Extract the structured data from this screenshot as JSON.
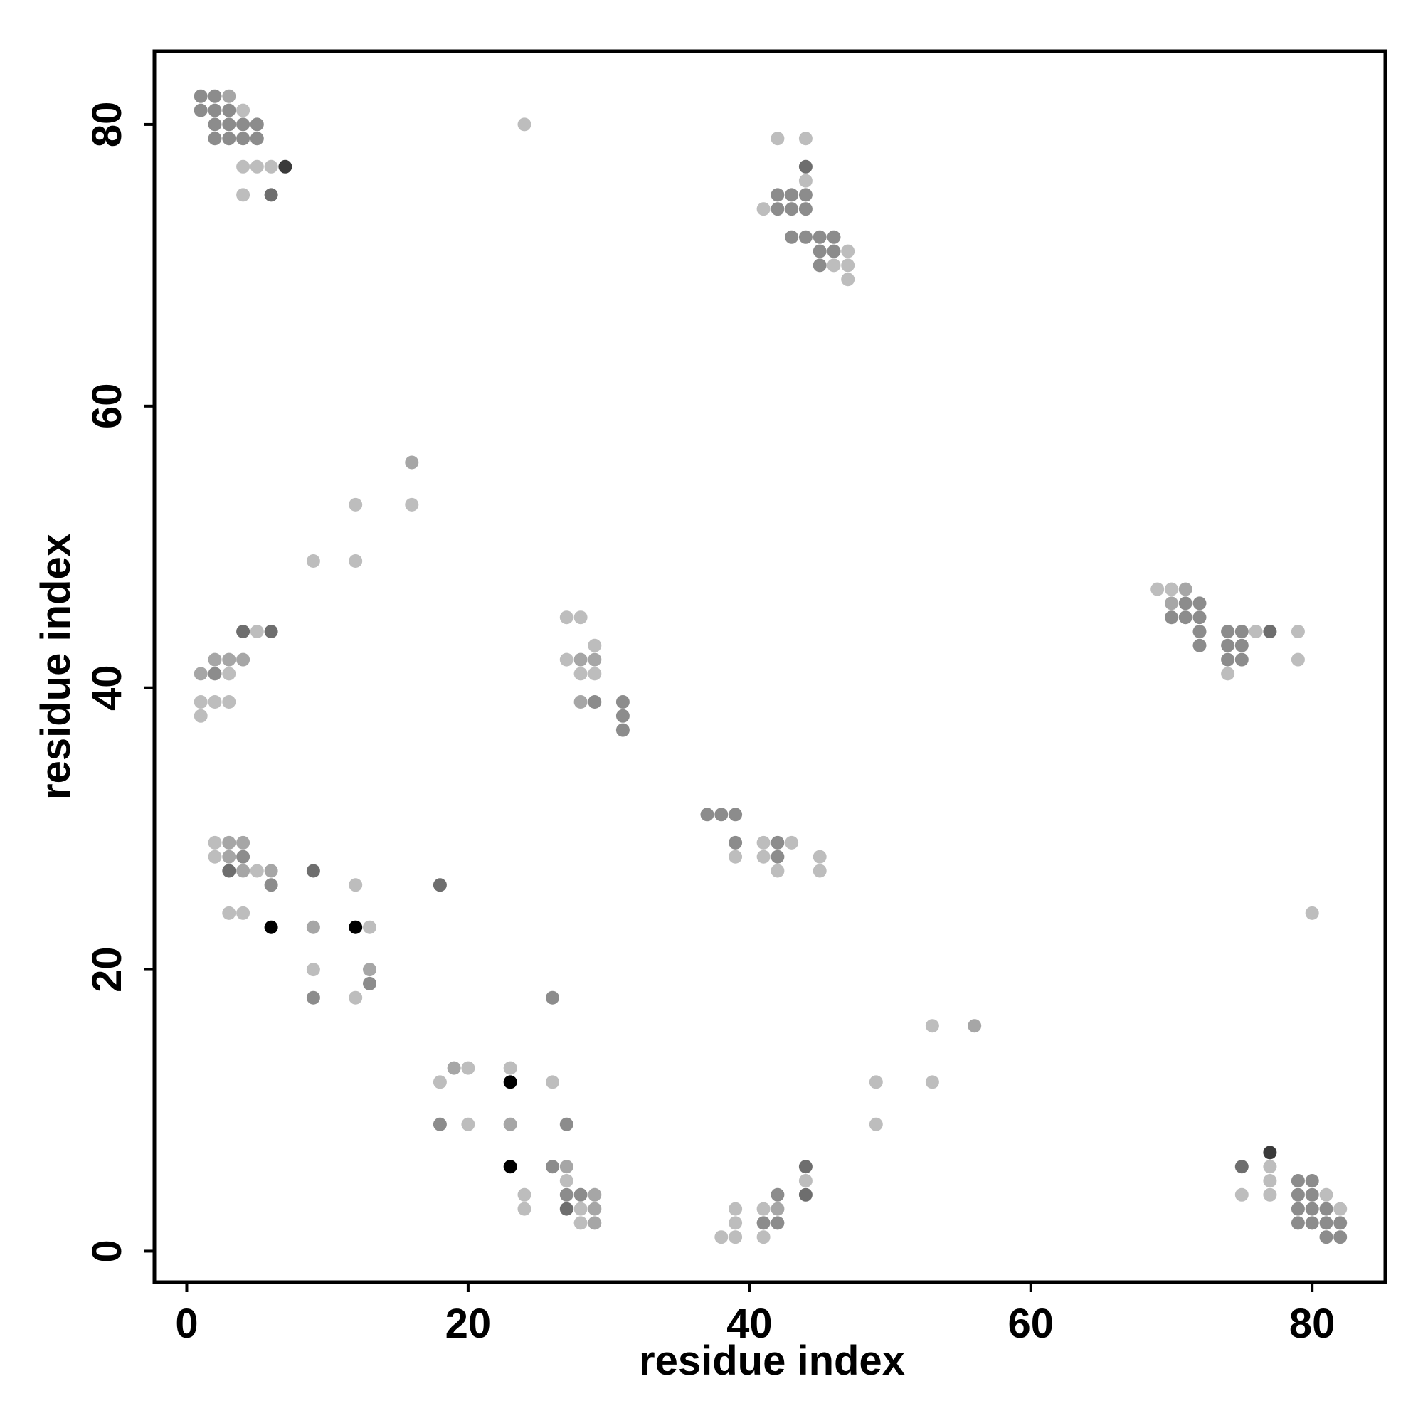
{
  "chart_data": {
    "type": "scatter",
    "title": "",
    "xlabel": "residue index",
    "ylabel": "residue index",
    "xlim": [
      -2.3,
      85.2
    ],
    "ylim": [
      -2.2,
      85.2
    ],
    "xticks": [
      0,
      20,
      40,
      60,
      80
    ],
    "yticks": [
      0,
      20,
      40,
      60,
      80
    ],
    "grid": false,
    "legend": "none",
    "shade_colors": {
      "1": "#bdbdbd",
      "2": "#a6a6a6",
      "3": "#8c8c8c",
      "4": "#6e6e6e",
      "5": "#3a3a3a",
      "6": "#000000"
    },
    "points": [
      [
        1,
        82,
        3
      ],
      [
        2,
        82,
        3
      ],
      [
        3,
        82,
        2
      ],
      [
        1,
        81,
        3
      ],
      [
        2,
        81,
        3
      ],
      [
        3,
        81,
        3
      ],
      [
        4,
        81,
        1
      ],
      [
        2,
        80,
        3
      ],
      [
        3,
        80,
        3
      ],
      [
        4,
        80,
        3
      ],
      [
        5,
        80,
        3
      ],
      [
        2,
        79,
        3
      ],
      [
        3,
        79,
        3
      ],
      [
        4,
        79,
        3
      ],
      [
        5,
        79,
        3
      ],
      [
        4,
        77,
        1
      ],
      [
        5,
        77,
        1
      ],
      [
        6,
        77,
        1
      ],
      [
        7,
        77,
        5
      ],
      [
        4,
        75,
        1
      ],
      [
        6,
        75,
        4
      ],
      [
        24,
        80,
        1
      ],
      [
        42,
        79,
        1
      ],
      [
        44,
        79,
        1
      ],
      [
        44,
        77,
        4
      ],
      [
        44,
        76,
        1
      ],
      [
        42,
        75,
        3
      ],
      [
        43,
        75,
        3
      ],
      [
        44,
        75,
        3
      ],
      [
        41,
        74,
        1
      ],
      [
        42,
        74,
        3
      ],
      [
        43,
        74,
        3
      ],
      [
        44,
        74,
        3
      ],
      [
        43,
        72,
        3
      ],
      [
        44,
        72,
        3
      ],
      [
        45,
        72,
        3
      ],
      [
        46,
        72,
        3
      ],
      [
        45,
        71,
        3
      ],
      [
        46,
        71,
        3
      ],
      [
        47,
        71,
        1
      ],
      [
        45,
        70,
        3
      ],
      [
        46,
        70,
        1
      ],
      [
        47,
        70,
        1
      ],
      [
        47,
        69,
        1
      ],
      [
        16,
        56,
        2
      ],
      [
        12,
        53,
        1
      ],
      [
        16,
        53,
        1
      ],
      [
        9,
        49,
        1
      ],
      [
        12,
        49,
        1
      ],
      [
        69,
        47,
        1
      ],
      [
        70,
        47,
        1
      ],
      [
        71,
        47,
        2
      ],
      [
        70,
        46,
        2
      ],
      [
        71,
        46,
        3
      ],
      [
        72,
        46,
        3
      ],
      [
        70,
        45,
        3
      ],
      [
        71,
        45,
        3
      ],
      [
        72,
        45,
        3
      ],
      [
        4,
        44,
        4
      ],
      [
        5,
        44,
        1
      ],
      [
        6,
        44,
        4
      ],
      [
        27,
        45,
        1
      ],
      [
        28,
        45,
        1
      ],
      [
        72,
        44,
        3
      ],
      [
        74,
        44,
        3
      ],
      [
        75,
        44,
        3
      ],
      [
        76,
        44,
        1
      ],
      [
        77,
        44,
        4
      ],
      [
        79,
        44,
        1
      ],
      [
        29,
        43,
        1
      ],
      [
        72,
        43,
        3
      ],
      [
        74,
        43,
        3
      ],
      [
        75,
        43,
        3
      ],
      [
        2,
        42,
        2
      ],
      [
        3,
        42,
        2
      ],
      [
        4,
        42,
        2
      ],
      [
        27,
        42,
        1
      ],
      [
        28,
        42,
        2
      ],
      [
        29,
        42,
        2
      ],
      [
        74,
        42,
        3
      ],
      [
        75,
        42,
        3
      ],
      [
        79,
        42,
        1
      ],
      [
        1,
        41,
        2
      ],
      [
        2,
        41,
        3
      ],
      [
        3,
        41,
        1
      ],
      [
        28,
        41,
        1
      ],
      [
        29,
        41,
        1
      ],
      [
        74,
        41,
        1
      ],
      [
        1,
        39,
        1
      ],
      [
        2,
        39,
        1
      ],
      [
        3,
        39,
        1
      ],
      [
        28,
        39,
        2
      ],
      [
        29,
        39,
        3
      ],
      [
        31,
        39,
        3
      ],
      [
        1,
        38,
        1
      ],
      [
        31,
        38,
        3
      ],
      [
        31,
        37,
        3
      ],
      [
        37,
        31,
        3
      ],
      [
        38,
        31,
        3
      ],
      [
        39,
        31,
        3
      ],
      [
        2,
        29,
        1
      ],
      [
        3,
        29,
        2
      ],
      [
        4,
        29,
        2
      ],
      [
        39,
        29,
        3
      ],
      [
        41,
        29,
        1
      ],
      [
        42,
        29,
        3
      ],
      [
        43,
        29,
        1
      ],
      [
        2,
        28,
        1
      ],
      [
        3,
        28,
        2
      ],
      [
        4,
        28,
        3
      ],
      [
        39,
        28,
        1
      ],
      [
        41,
        28,
        1
      ],
      [
        42,
        28,
        3
      ],
      [
        45,
        28,
        1
      ],
      [
        3,
        27,
        4
      ],
      [
        4,
        27,
        2
      ],
      [
        5,
        27,
        1
      ],
      [
        6,
        27,
        2
      ],
      [
        9,
        27,
        4
      ],
      [
        42,
        27,
        1
      ],
      [
        45,
        27,
        1
      ],
      [
        6,
        26,
        3
      ],
      [
        12,
        26,
        1
      ],
      [
        18,
        26,
        4
      ],
      [
        3,
        24,
        1
      ],
      [
        4,
        24,
        1
      ],
      [
        80,
        24,
        1
      ],
      [
        6,
        23,
        6
      ],
      [
        9,
        23,
        2
      ],
      [
        12,
        23,
        6
      ],
      [
        13,
        23,
        1
      ],
      [
        9,
        20,
        1
      ],
      [
        13,
        20,
        2
      ],
      [
        13,
        19,
        3
      ],
      [
        9,
        18,
        3
      ],
      [
        12,
        18,
        1
      ],
      [
        26,
        18,
        3
      ],
      [
        53,
        16,
        1
      ],
      [
        56,
        16,
        2
      ],
      [
        19,
        13,
        2
      ],
      [
        20,
        13,
        1
      ],
      [
        23,
        13,
        1
      ],
      [
        18,
        12,
        1
      ],
      [
        23,
        12,
        6
      ],
      [
        26,
        12,
        1
      ],
      [
        49,
        12,
        1
      ],
      [
        53,
        12,
        1
      ],
      [
        18,
        9,
        3
      ],
      [
        20,
        9,
        1
      ],
      [
        23,
        9,
        2
      ],
      [
        27,
        9,
        3
      ],
      [
        49,
        9,
        1
      ],
      [
        77,
        7,
        5
      ],
      [
        23,
        6,
        6
      ],
      [
        26,
        6,
        3
      ],
      [
        27,
        6,
        2
      ],
      [
        44,
        6,
        4
      ],
      [
        75,
        6,
        4
      ],
      [
        77,
        6,
        1
      ],
      [
        27,
        5,
        1
      ],
      [
        44,
        5,
        1
      ],
      [
        77,
        5,
        1
      ],
      [
        79,
        5,
        3
      ],
      [
        80,
        5,
        3
      ],
      [
        24,
        4,
        1
      ],
      [
        27,
        4,
        3
      ],
      [
        28,
        4,
        3
      ],
      [
        29,
        4,
        2
      ],
      [
        42,
        4,
        3
      ],
      [
        44,
        4,
        4
      ],
      [
        75,
        4,
        1
      ],
      [
        77,
        4,
        1
      ],
      [
        79,
        4,
        3
      ],
      [
        80,
        4,
        3
      ],
      [
        81,
        4,
        1
      ],
      [
        24,
        3,
        1
      ],
      [
        27,
        3,
        4
      ],
      [
        28,
        3,
        1
      ],
      [
        29,
        3,
        2
      ],
      [
        39,
        3,
        1
      ],
      [
        41,
        3,
        1
      ],
      [
        42,
        3,
        2
      ],
      [
        79,
        3,
        3
      ],
      [
        80,
        3,
        3
      ],
      [
        81,
        3,
        3
      ],
      [
        82,
        3,
        1
      ],
      [
        28,
        2,
        1
      ],
      [
        29,
        2,
        2
      ],
      [
        39,
        2,
        1
      ],
      [
        41,
        2,
        3
      ],
      [
        42,
        2,
        3
      ],
      [
        79,
        2,
        3
      ],
      [
        80,
        2,
        3
      ],
      [
        81,
        2,
        3
      ],
      [
        82,
        2,
        3
      ],
      [
        38,
        1,
        1
      ],
      [
        39,
        1,
        1
      ],
      [
        41,
        1,
        1
      ],
      [
        81,
        1,
        3
      ],
      [
        82,
        1,
        3
      ]
    ]
  }
}
